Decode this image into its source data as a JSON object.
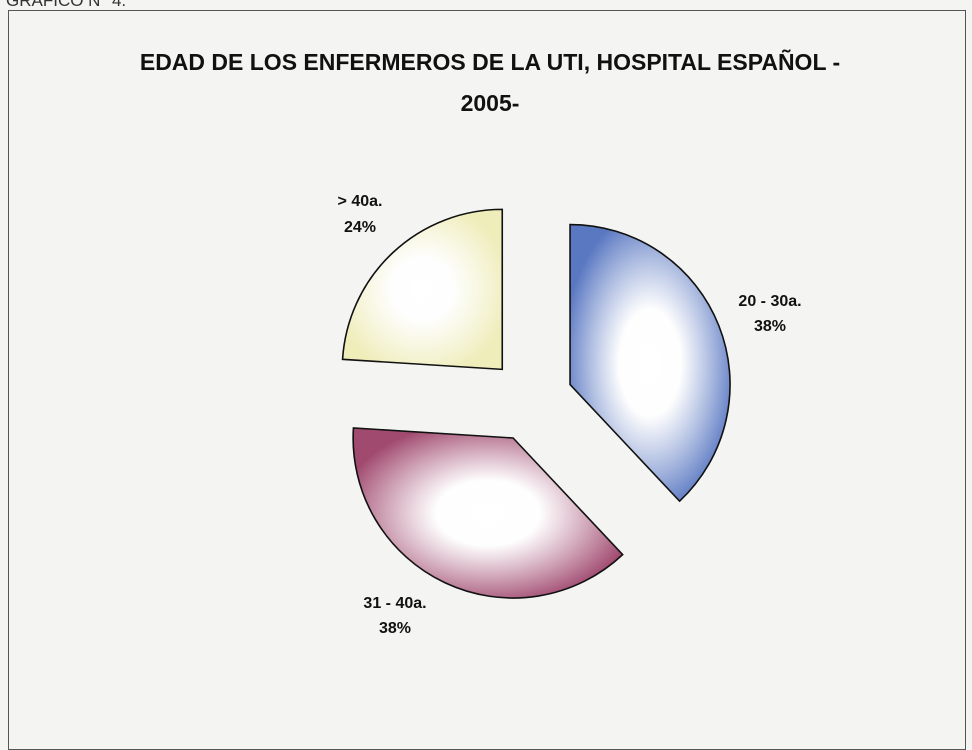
{
  "caption": "GRAFICO N° 4.",
  "chart_data": {
    "type": "pie",
    "title": "EDAD DE LOS ENFERMEROS DE LA UTI, HOSPITAL ESPAÑOL - 2005-",
    "categories": [
      "20 - 30a.",
      "31 - 40a.",
      "> 40a."
    ],
    "values": [
      38,
      38,
      24
    ],
    "value_labels": [
      "38%",
      "38%",
      "24%"
    ],
    "colors": [
      "#5a78c2",
      "#a14a70",
      "#efedba"
    ]
  }
}
